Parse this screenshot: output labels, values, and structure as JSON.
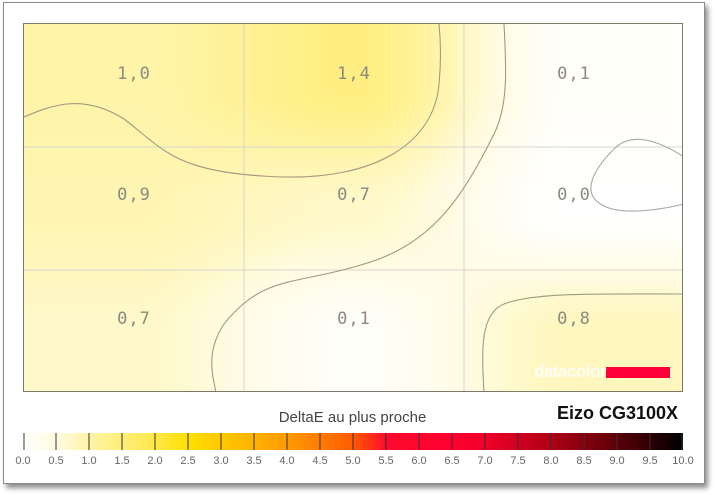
{
  "chart_data": {
    "type": "heatmap",
    "title": "DeltaE au plus proche",
    "device": "Eizo CG3100X",
    "rows": 3,
    "cols": 3,
    "values": [
      [
        1.0,
        1.4,
        0.1
      ],
      [
        0.9,
        0.7,
        0.0
      ],
      [
        0.7,
        0.1,
        0.8
      ]
    ],
    "labels": [
      [
        "1,0",
        "1,4",
        "0,1"
      ],
      [
        "0,9",
        "0,7",
        "0,0"
      ],
      [
        "0,7",
        "0,1",
        "0,8"
      ]
    ],
    "colorbar": {
      "range": [
        0,
        10
      ],
      "ticks": [
        "0.0",
        "0.5",
        "1.0",
        "1.5",
        "2.0",
        "2.5",
        "3.0",
        "3.5",
        "4.0",
        "4.5",
        "5.0",
        "5.5",
        "6.0",
        "6.5",
        "7.0",
        "7.5",
        "8.0",
        "8.5",
        "9.0",
        "9.5",
        "10.0"
      ],
      "stops": [
        [
          0,
          "#ffffff"
        ],
        [
          0.5,
          "#fffbe0"
        ],
        [
          1.0,
          "#fff4a8"
        ],
        [
          1.5,
          "#ffee78"
        ],
        [
          2.0,
          "#ffe84a"
        ],
        [
          2.5,
          "#ffe000"
        ],
        [
          3.0,
          "#ffc800"
        ],
        [
          3.5,
          "#ffb300"
        ],
        [
          4.0,
          "#ff9a00"
        ],
        [
          4.5,
          "#ff7c00"
        ],
        [
          5.0,
          "#ff5a00"
        ],
        [
          5.5,
          "#ff0a2e"
        ],
        [
          6.5,
          "#ff0030"
        ],
        [
          7.0,
          "#ef0028"
        ],
        [
          8.0,
          "#b00016"
        ],
        [
          9.0,
          "#5a0008"
        ],
        [
          10.0,
          "#000000"
        ]
      ]
    }
  },
  "logo": {
    "text": "datacolor",
    "color": "#ff003a"
  }
}
